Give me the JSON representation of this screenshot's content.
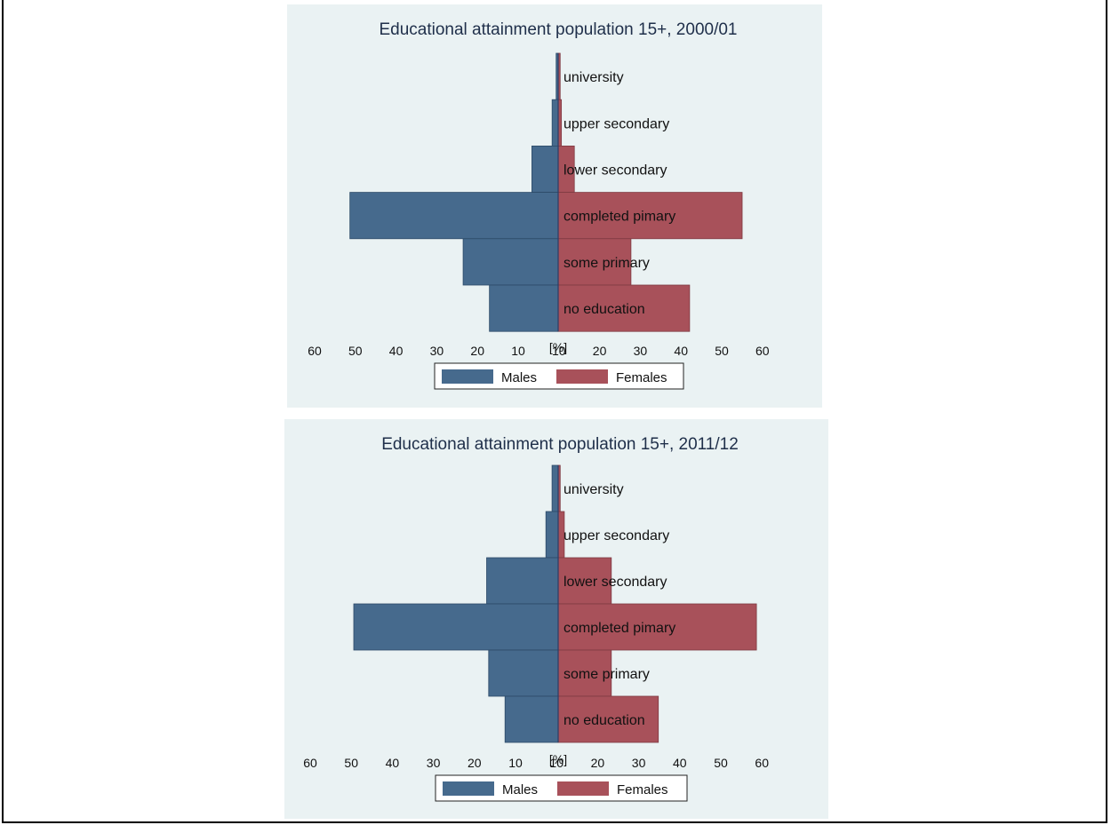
{
  "colors": {
    "males": "#466a8d",
    "females": "#a8515a",
    "panel_bg": "#eaf2f3"
  },
  "chart_data": [
    {
      "type": "bar",
      "orientation": "horizontal-pyramid",
      "title": "Educational attainment population 15+, 2000/01",
      "xlabel": "[%]",
      "xlim": [
        -60,
        60
      ],
      "x_ticks": [
        "60",
        "50",
        "40",
        "30",
        "20",
        "10",
        "10",
        "20",
        "30",
        "40",
        "50",
        "60"
      ],
      "categories": [
        "university",
        "upper secondary",
        "lower secondary",
        "completed pimary",
        "some primary",
        "no education"
      ],
      "series": [
        {
          "name": "Males",
          "values": [
            0.5,
            1.5,
            6.5,
            51.5,
            23.5,
            17
          ]
        },
        {
          "name": "Females",
          "values": [
            0.5,
            0.8,
            4,
            45.5,
            18,
            32.5
          ]
        }
      ],
      "legend": {
        "position": "bottom",
        "items": [
          "Males",
          "Females"
        ]
      }
    },
    {
      "type": "bar",
      "orientation": "horizontal-pyramid",
      "title": "Educational attainment population 15+, 2011/12",
      "xlabel": "[%]",
      "xlim": [
        -60,
        60
      ],
      "x_ticks": [
        "60",
        "50",
        "40",
        "30",
        "20",
        "10",
        "10",
        "20",
        "30",
        "40",
        "50",
        "60"
      ],
      "categories": [
        "university",
        "upper secondary",
        "lower secondary",
        "completed pimary",
        "some primary",
        "no education"
      ],
      "series": [
        {
          "name": "Males",
          "values": [
            1.5,
            3,
            17.5,
            50,
            17,
            13
          ]
        },
        {
          "name": "Females",
          "values": [
            0.5,
            1.5,
            13,
            48.5,
            13,
            24.5
          ]
        }
      ],
      "legend": {
        "position": "bottom",
        "items": [
          "Males",
          "Females"
        ]
      }
    }
  ]
}
